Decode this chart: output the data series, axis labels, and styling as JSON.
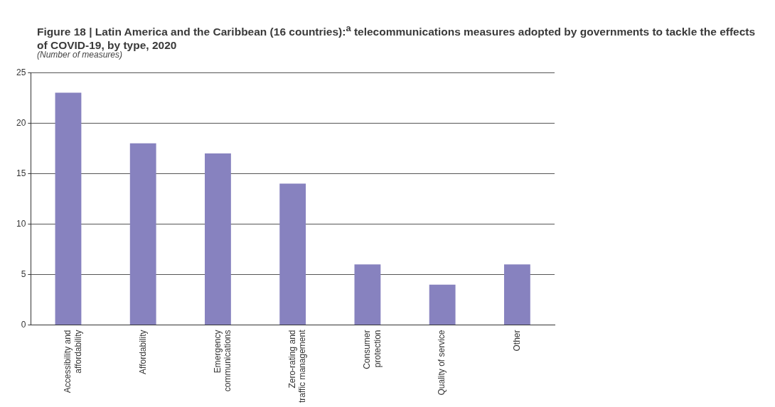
{
  "chart_data": {
    "type": "bar",
    "title": "Figure 18 | Latin America and the Caribbean (16 countries):$^{a}$ telecommunications measures adopted by governments to tackle the effects of COVID-19, by type, 2020",
    "subtitle": "(Number of measures)",
    "categories": [
      "Accessibility and affordability",
      "Affordability",
      "Emergency communications",
      "Zero-rating and traffic management",
      "Consumer protection",
      "Quality of service",
      "Other"
    ],
    "values": [
      23,
      18,
      17,
      14,
      6,
      4,
      6
    ],
    "color": "#8782bf",
    "ylim": [
      0,
      25
    ],
    "yticks": [
      0,
      5,
      10,
      15,
      20,
      25
    ],
    "grid": "y",
    "legend": false
  }
}
